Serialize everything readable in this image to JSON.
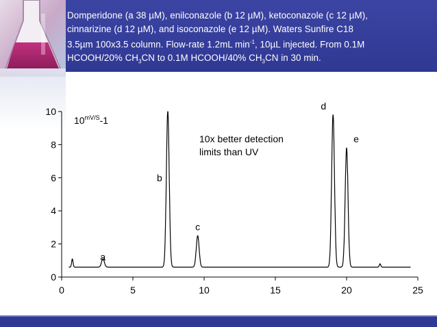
{
  "header": {
    "caption_lines": [
      [
        "Domperidone (a 38 µM), enilconazole (b 12 µM), ketoconazole (c 12 µM),"
      ],
      [
        "cinnarizine (d 12 µM), and isoconazole (e 12 µM). Waters Sunfire C18"
      ],
      [
        "3.5µm 100x3.5 column. Flow-rate 1.2mL min",
        "-1",
        ", 10µL injected. From 0.1M"
      ],
      [
        "HCOOH/20% CH",
        "3",
        "CN to 0.1M HCOOH/40% CH",
        "3",
        "CN in 30 min."
      ]
    ],
    "colors": {
      "background": "#3036a0",
      "text": "#ffffff"
    }
  },
  "chart_data": {
    "type": "line",
    "unit_label": {
      "base": "10",
      "superscript": "mV/S",
      "suffix": "-1"
    },
    "annotation": [
      "10x better detection",
      "limits than UV"
    ],
    "xlim": [
      0,
      25
    ],
    "ylim": [
      0,
      10
    ],
    "xticks": [
      "0",
      "5",
      "10",
      "15",
      "20",
      "25"
    ],
    "yticks": [
      "0",
      "2",
      "4",
      "6",
      "8",
      "10"
    ],
    "grid": false,
    "line_color": "#000000",
    "baseline": 0.6,
    "trace_range": [
      0.5,
      24.5
    ],
    "peaks": [
      {
        "label": "a",
        "x": 2.9,
        "height": 1.1
      },
      {
        "label": "b",
        "x": 7.45,
        "height": 10.0
      },
      {
        "label": "c",
        "x": 9.55,
        "height": 2.5
      },
      {
        "label": "d",
        "x": 19.05,
        "height": 9.8
      },
      {
        "label": "e",
        "x": 20.0,
        "height": 7.8
      }
    ],
    "minor_peaks": [
      {
        "x": 0.75,
        "height": 1.1
      },
      {
        "x": 22.35,
        "height": 0.8
      }
    ]
  }
}
